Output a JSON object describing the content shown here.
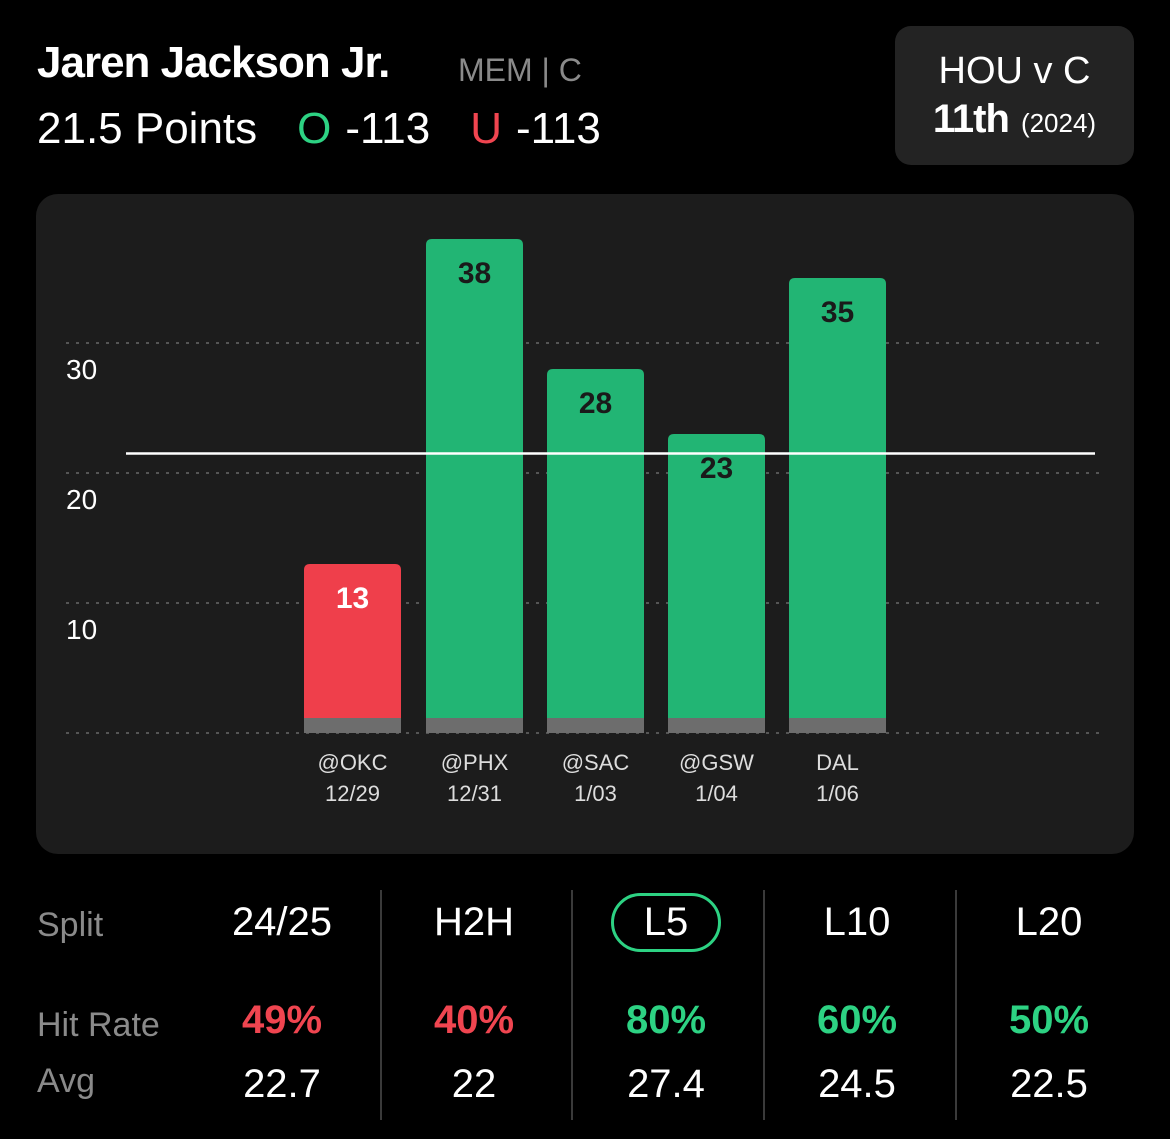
{
  "player": {
    "name": "Jaren Jackson Jr.",
    "team_position": "MEM | C"
  },
  "line": {
    "value": "21.5 Points",
    "over_label": "O",
    "over_odds": "-113",
    "under_label": "U",
    "under_odds": "-113"
  },
  "matchup": {
    "title": "HOU v C",
    "rank": "11th",
    "season": "(2024)"
  },
  "colors": {
    "over": "#2dd283",
    "bar_over": "#22b574",
    "bar_under": "#ef3f4b",
    "panel": "#1c1c1c"
  },
  "chart_data": {
    "type": "bar",
    "categories": [
      "@OKC 12/29",
      "@PHX 12/31",
      "@SAC 1/03",
      "@GSW 1/04",
      "DAL 1/06"
    ],
    "opponents": [
      "@OKC",
      "@PHX",
      "@SAC",
      "@GSW",
      "DAL"
    ],
    "dates": [
      "12/29",
      "12/31",
      "1/03",
      "1/04",
      "1/06"
    ],
    "values": [
      13,
      38,
      28,
      23,
      35
    ],
    "line": 21.5,
    "yticks": [
      10,
      20,
      30
    ],
    "ylim": [
      0,
      40
    ],
    "grid": true
  },
  "splits": {
    "row_labels": {
      "split": "Split",
      "hit_rate": "Hit Rate",
      "avg": "Avg"
    },
    "columns": [
      {
        "label": "24/25",
        "hit_rate": "49%",
        "avg": "22.7",
        "status": "red",
        "active": false
      },
      {
        "label": "H2H",
        "hit_rate": "40%",
        "avg": "22",
        "status": "red",
        "active": false
      },
      {
        "label": "L5",
        "hit_rate": "80%",
        "avg": "27.4",
        "status": "green",
        "active": true
      },
      {
        "label": "L10",
        "hit_rate": "60%",
        "avg": "24.5",
        "status": "green",
        "active": false
      },
      {
        "label": "L20",
        "hit_rate": "50%",
        "avg": "22.5",
        "status": "green",
        "active": false
      }
    ]
  }
}
